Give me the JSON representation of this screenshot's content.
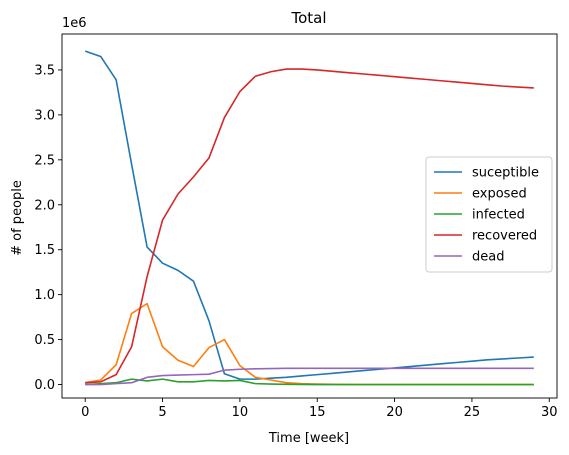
{
  "chart_data": {
    "type": "line",
    "title": "Total",
    "xlabel": "Time [week]",
    "ylabel": "# of people",
    "y_offset_label": "1e6",
    "xlim": [
      -1.5,
      30.5
    ],
    "ylim": [
      -0.15,
      3.9
    ],
    "y_multiplier": 1000000,
    "x_ticks": [
      0,
      5,
      10,
      15,
      20,
      25,
      30
    ],
    "x_tick_labels": [
      "0",
      "5",
      "10",
      "15",
      "20",
      "25",
      "30"
    ],
    "y_ticks": [
      0.0,
      0.5,
      1.0,
      1.5,
      2.0,
      2.5,
      3.0,
      3.5
    ],
    "y_tick_labels": [
      "0.0",
      "0.5",
      "1.0",
      "1.5",
      "2.0",
      "2.5",
      "3.0",
      "3.5"
    ],
    "grid": false,
    "legend_position": "center-right",
    "x": [
      0,
      1,
      2,
      3,
      4,
      5,
      6,
      7,
      8,
      9,
      10,
      11,
      12,
      13,
      14,
      15,
      16,
      17,
      18,
      19,
      20,
      21,
      22,
      23,
      24,
      25,
      26,
      27,
      28,
      29
    ],
    "series": [
      {
        "name": "suceptible",
        "color": "#1f77b4",
        "values": [
          3.71,
          3.65,
          3.39,
          2.45,
          1.53,
          1.35,
          1.27,
          1.15,
          0.71,
          0.12,
          0.06,
          0.06,
          0.07,
          0.08,
          0.095,
          0.11,
          0.125,
          0.14,
          0.155,
          0.17,
          0.185,
          0.2,
          0.215,
          0.23,
          0.245,
          0.26,
          0.275,
          0.285,
          0.295,
          0.305
        ]
      },
      {
        "name": "exposed",
        "color": "#ff7f0e",
        "values": [
          0.02,
          0.05,
          0.22,
          0.79,
          0.9,
          0.42,
          0.27,
          0.2,
          0.41,
          0.5,
          0.21,
          0.08,
          0.05,
          0.02,
          0.01,
          0.005,
          0.002,
          0.001,
          0,
          0,
          0,
          0,
          0,
          0,
          0,
          0,
          0,
          0,
          0,
          0
        ]
      },
      {
        "name": "infected",
        "color": "#2ca02c",
        "values": [
          0.0,
          0.01,
          0.02,
          0.06,
          0.04,
          0.06,
          0.03,
          0.03,
          0.045,
          0.04,
          0.045,
          0.01,
          0.005,
          0.002,
          0.001,
          0,
          0,
          0,
          0,
          0,
          0,
          0,
          0,
          0,
          0,
          0,
          0,
          0,
          0,
          0
        ]
      },
      {
        "name": "recovered",
        "color": "#d62728",
        "values": [
          0.02,
          0.03,
          0.11,
          0.42,
          1.2,
          1.83,
          2.12,
          2.31,
          2.52,
          2.97,
          3.26,
          3.43,
          3.48,
          3.51,
          3.51,
          3.5,
          3.485,
          3.47,
          3.455,
          3.44,
          3.425,
          3.41,
          3.395,
          3.38,
          3.365,
          3.35,
          3.335,
          3.32,
          3.31,
          3.3
        ]
      },
      {
        "name": "dead",
        "color": "#9467bd",
        "values": [
          0.0,
          0.0,
          0.01,
          0.02,
          0.08,
          0.1,
          0.105,
          0.11,
          0.115,
          0.16,
          0.17,
          0.175,
          0.178,
          0.18,
          0.18,
          0.18,
          0.18,
          0.18,
          0.18,
          0.18,
          0.18,
          0.18,
          0.18,
          0.18,
          0.18,
          0.18,
          0.18,
          0.18,
          0.18,
          0.18
        ]
      }
    ]
  }
}
